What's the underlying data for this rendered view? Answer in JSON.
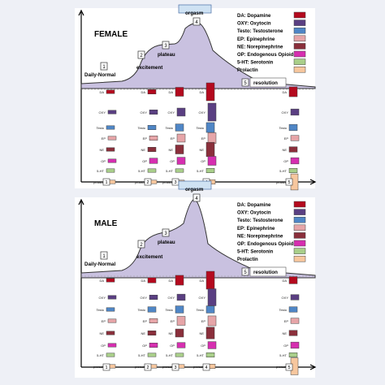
{
  "legend": [
    {
      "key": "da",
      "label": "DA: Dopamine",
      "color": "#b40a1e"
    },
    {
      "key": "oxy",
      "label": "OXY: Oxytocin",
      "color": "#5a3f82"
    },
    {
      "key": "testo",
      "label": "Testo: Testosterone",
      "color": "#4f86c6"
    },
    {
      "key": "ep",
      "label": "EP: Epinephrine",
      "color": "#e6a5a8"
    },
    {
      "key": "ne",
      "label": "NE: Norepinephrine",
      "color": "#8a2f3b"
    },
    {
      "key": "op",
      "label": "OP: Endogenous Opioids",
      "color": "#d62fb0"
    },
    {
      "key": "sht",
      "label": "5-HT: Serotonin",
      "color": "#a9cf8a"
    },
    {
      "key": "prl",
      "label": "Prolactin",
      "color": "#f7c79e"
    }
  ],
  "row_labels": [
    "DA",
    "OXY",
    "Testo",
    "EP",
    "NE",
    "OP",
    "5-HT",
    "prolactin"
  ],
  "panels": [
    {
      "title": "FEMALE",
      "phases": [
        {
          "num": "1",
          "label": "Daily-Normal"
        },
        {
          "num": "2",
          "label": "excitement"
        },
        {
          "num": "3",
          "label": "plateau"
        },
        {
          "num": "4",
          "label": "orgasm"
        },
        {
          "num": "5",
          "label": "resolution"
        }
      ],
      "marker_numbers": [
        "1",
        "2",
        "3",
        "4",
        "5"
      ],
      "cells": [
        {
          "phase": 1,
          "row": 0,
          "v": 0.2
        },
        {
          "phase": 1,
          "row": 1,
          "v": 0.2
        },
        {
          "phase": 1,
          "row": 2,
          "v": 0.2
        },
        {
          "phase": 1,
          "row": 3,
          "v": 0.2
        },
        {
          "phase": 1,
          "row": 4,
          "v": 0.2
        },
        {
          "phase": 1,
          "row": 5,
          "v": 0.2
        },
        {
          "phase": 1,
          "row": 6,
          "v": 0.2
        },
        {
          "phase": 1,
          "row": 7,
          "v": 0.2
        },
        {
          "phase": 2,
          "row": 0,
          "v": 0.25
        },
        {
          "phase": 2,
          "row": 1,
          "v": 0.25
        },
        {
          "phase": 2,
          "row": 2,
          "v": 0.25
        },
        {
          "phase": 2,
          "row": 3,
          "v": 0.25
        },
        {
          "phase": 2,
          "row": 4,
          "v": 0.25
        },
        {
          "phase": 2,
          "row": 5,
          "v": 0.3
        },
        {
          "phase": 2,
          "row": 6,
          "v": 0.2
        },
        {
          "phase": 2,
          "row": 7,
          "v": 0.2
        },
        {
          "phase": 3,
          "row": 0,
          "v": 0.5
        },
        {
          "phase": 3,
          "row": 1,
          "v": 0.45
        },
        {
          "phase": 3,
          "row": 2,
          "v": 0.4
        },
        {
          "phase": 3,
          "row": 3,
          "v": 0.45
        },
        {
          "phase": 3,
          "row": 4,
          "v": 0.5
        },
        {
          "phase": 3,
          "row": 5,
          "v": 0.4
        },
        {
          "phase": 3,
          "row": 6,
          "v": 0.2
        },
        {
          "phase": 3,
          "row": 7,
          "v": 0.2
        },
        {
          "phase": 4,
          "row": 0,
          "v": 1.0
        },
        {
          "phase": 4,
          "row": 1,
          "v": 1.0
        },
        {
          "phase": 4,
          "row": 2,
          "v": 0.55
        },
        {
          "phase": 4,
          "row": 3,
          "v": 0.6
        },
        {
          "phase": 4,
          "row": 4,
          "v": 0.8
        },
        {
          "phase": 4,
          "row": 5,
          "v": 0.5
        },
        {
          "phase": 4,
          "row": 6,
          "v": 0.25
        },
        {
          "phase": 4,
          "row": 7,
          "v": 0.25
        },
        {
          "phase": 5,
          "row": 0,
          "v": 0.55
        },
        {
          "phase": 5,
          "row": 1,
          "v": 0.35
        },
        {
          "phase": 5,
          "row": 2,
          "v": 0.35
        },
        {
          "phase": 5,
          "row": 3,
          "v": 0.3
        },
        {
          "phase": 5,
          "row": 4,
          "v": 0.3
        },
        {
          "phase": 5,
          "row": 5,
          "v": 0.35
        },
        {
          "phase": 5,
          "row": 6,
          "v": 0.25
        },
        {
          "phase": 5,
          "row": 7,
          "v": 0.9
        }
      ]
    },
    {
      "title": "MALE",
      "phases": [
        {
          "num": "1",
          "label": "Daily-Normal"
        },
        {
          "num": "2",
          "label": "excitement"
        },
        {
          "num": "3",
          "label": "plateau"
        },
        {
          "num": "4",
          "label": "orgasm"
        },
        {
          "num": "5",
          "label": "resolution"
        }
      ],
      "marker_numbers": [
        "1",
        "2",
        "3",
        "4",
        "5"
      ],
      "cells": [
        {
          "phase": 1,
          "row": 0,
          "v": 0.2
        },
        {
          "phase": 1,
          "row": 1,
          "v": 0.2
        },
        {
          "phase": 1,
          "row": 2,
          "v": 0.2
        },
        {
          "phase": 1,
          "row": 3,
          "v": 0.2
        },
        {
          "phase": 1,
          "row": 4,
          "v": 0.2
        },
        {
          "phase": 1,
          "row": 5,
          "v": 0.2
        },
        {
          "phase": 1,
          "row": 6,
          "v": 0.2
        },
        {
          "phase": 1,
          "row": 7,
          "v": 0.2
        },
        {
          "phase": 2,
          "row": 0,
          "v": 0.3
        },
        {
          "phase": 2,
          "row": 1,
          "v": 0.25
        },
        {
          "phase": 2,
          "row": 2,
          "v": 0.3
        },
        {
          "phase": 2,
          "row": 3,
          "v": 0.25
        },
        {
          "phase": 2,
          "row": 4,
          "v": 0.25
        },
        {
          "phase": 2,
          "row": 5,
          "v": 0.25
        },
        {
          "phase": 2,
          "row": 6,
          "v": 0.2
        },
        {
          "phase": 2,
          "row": 7,
          "v": 0.2
        },
        {
          "phase": 3,
          "row": 0,
          "v": 0.55
        },
        {
          "phase": 3,
          "row": 1,
          "v": 0.35
        },
        {
          "phase": 3,
          "row": 2,
          "v": 0.4
        },
        {
          "phase": 3,
          "row": 3,
          "v": 0.5
        },
        {
          "phase": 3,
          "row": 4,
          "v": 0.45
        },
        {
          "phase": 3,
          "row": 5,
          "v": 0.3
        },
        {
          "phase": 3,
          "row": 6,
          "v": 0.2
        },
        {
          "phase": 3,
          "row": 7,
          "v": 0.2
        },
        {
          "phase": 4,
          "row": 0,
          "v": 1.0
        },
        {
          "phase": 4,
          "row": 1,
          "v": 0.95
        },
        {
          "phase": 4,
          "row": 2,
          "v": 0.4
        },
        {
          "phase": 4,
          "row": 3,
          "v": 0.55
        },
        {
          "phase": 4,
          "row": 4,
          "v": 0.65
        },
        {
          "phase": 4,
          "row": 5,
          "v": 0.4
        },
        {
          "phase": 4,
          "row": 6,
          "v": 0.25
        },
        {
          "phase": 4,
          "row": 7,
          "v": 0.25
        },
        {
          "phase": 5,
          "row": 0,
          "v": 0.4
        },
        {
          "phase": 5,
          "row": 1,
          "v": 0.3
        },
        {
          "phase": 5,
          "row": 2,
          "v": 0.3
        },
        {
          "phase": 5,
          "row": 3,
          "v": 0.3
        },
        {
          "phase": 5,
          "row": 4,
          "v": 0.3
        },
        {
          "phase": 5,
          "row": 5,
          "v": 0.35
        },
        {
          "phase": 5,
          "row": 6,
          "v": 0.25
        },
        {
          "phase": 5,
          "row": 7,
          "v": 0.95
        }
      ]
    }
  ]
}
